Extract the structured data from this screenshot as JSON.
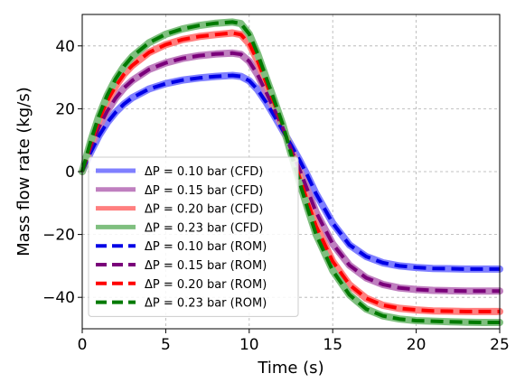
{
  "chart_data": {
    "type": "line",
    "title": "",
    "xlabel": "Time (s)",
    "ylabel": "Mass flow rate (kg/s)",
    "xlim": [
      0,
      25
    ],
    "ylim": [
      -50,
      50
    ],
    "xticks": [
      0,
      5,
      10,
      15,
      20,
      25
    ],
    "yticks": [
      -40,
      -20,
      0,
      20,
      40
    ],
    "grid": true,
    "grid_style": "dashed",
    "legend_position": "lower-left",
    "x": [
      0,
      0.5,
      1,
      1.5,
      2,
      2.5,
      3,
      4,
      5,
      6,
      7,
      8,
      9,
      9.5,
      10,
      10.5,
      11,
      11.5,
      12,
      12.5,
      13,
      13.5,
      14,
      15,
      16,
      17,
      18,
      19,
      20,
      21,
      22,
      23,
      24,
      25
    ],
    "series": [
      {
        "name": "ΔP = 0.10 bar (CFD)",
        "color": "#7f7fff",
        "style": "solid",
        "values": [
          0,
          6.1,
          11.4,
          15.6,
          18.9,
          21.5,
          23.5,
          26.3,
          28.0,
          29.1,
          29.8,
          30.3,
          30.6,
          30.3,
          28.9,
          26.1,
          22.2,
          17.8,
          13.2,
          8.5,
          3.8,
          -1.4,
          -7.0,
          -16.4,
          -23.3,
          -27.0,
          -29.0,
          -30.0,
          -30.5,
          -30.8,
          -30.9,
          -31.0,
          -31.0,
          -31.0
        ]
      },
      {
        "name": "ΔP = 0.15 bar (CFD)",
        "color": "#bf7fbf",
        "style": "solid",
        "values": [
          0,
          7.5,
          14.1,
          19.3,
          23.4,
          26.6,
          29.0,
          32.5,
          34.6,
          36.0,
          36.9,
          37.4,
          37.7,
          37.3,
          35.1,
          30.9,
          25.4,
          19.8,
          14.0,
          7.2,
          0.9,
          -6.0,
          -12.9,
          -23.0,
          -29.8,
          -33.8,
          -35.9,
          -37.0,
          -37.5,
          -37.8,
          -37.9,
          -38.0,
          -38.0,
          -38.0
        ]
      },
      {
        "name": "ΔP = 0.20 bar (CFD)",
        "color": "#ff7f7f",
        "style": "solid",
        "values": [
          0,
          8.8,
          16.4,
          22.5,
          27.2,
          31.0,
          33.8,
          37.9,
          40.4,
          42.0,
          43.0,
          43.6,
          44.1,
          43.6,
          40.7,
          35.3,
          28.5,
          21.8,
          14.8,
          6.3,
          -1.6,
          -9.7,
          -17.3,
          -28.6,
          -36.0,
          -40.3,
          -42.5,
          -43.5,
          -44.0,
          -44.3,
          -44.4,
          -44.5,
          -44.5,
          -44.5
        ]
      },
      {
        "name": "ΔP = 0.23 bar (CFD)",
        "color": "#7fbf7f",
        "style": "solid",
        "values": [
          0,
          9.5,
          17.8,
          24.3,
          29.5,
          33.5,
          36.6,
          41.0,
          43.7,
          45.4,
          46.5,
          47.2,
          47.6,
          47.1,
          43.8,
          37.6,
          30.1,
          22.7,
          15.1,
          5.8,
          -3.1,
          -11.8,
          -19.9,
          -31.5,
          -39.2,
          -43.7,
          -45.9,
          -46.9,
          -47.4,
          -47.6,
          -47.8,
          -47.9,
          -48.0,
          -48.0
        ]
      },
      {
        "name": "ΔP = 0.10 bar (ROM)",
        "color": "#0000e6",
        "style": "dashed",
        "values": [
          0,
          6.1,
          11.4,
          15.6,
          18.9,
          21.5,
          23.5,
          26.3,
          28.0,
          29.1,
          29.8,
          30.3,
          30.6,
          30.3,
          28.9,
          26.1,
          22.2,
          17.8,
          13.2,
          8.5,
          3.8,
          -1.4,
          -7.0,
          -16.4,
          -23.3,
          -27.0,
          -29.0,
          -30.0,
          -30.5,
          -30.8,
          -30.9,
          -31.0,
          -31.0,
          -31.0
        ]
      },
      {
        "name": "ΔP = 0.15 bar (ROM)",
        "color": "#7a007a",
        "style": "dashed",
        "values": [
          0,
          7.5,
          14.1,
          19.3,
          23.4,
          26.6,
          29.0,
          32.5,
          34.6,
          36.0,
          36.9,
          37.4,
          37.7,
          37.3,
          35.1,
          30.9,
          25.4,
          19.8,
          14.0,
          7.2,
          0.9,
          -6.0,
          -12.9,
          -23.0,
          -29.8,
          -33.8,
          -35.9,
          -37.0,
          -37.5,
          -37.8,
          -37.9,
          -38.0,
          -38.0,
          -38.0
        ]
      },
      {
        "name": "ΔP = 0.20 bar (ROM)",
        "color": "#ff0000",
        "style": "dashed",
        "values": [
          0,
          8.8,
          16.4,
          22.5,
          27.2,
          31.0,
          33.8,
          37.9,
          40.4,
          42.0,
          43.0,
          43.6,
          44.1,
          43.6,
          40.7,
          35.3,
          28.5,
          21.8,
          14.8,
          6.3,
          -1.6,
          -9.7,
          -17.3,
          -28.6,
          -36.0,
          -40.3,
          -42.5,
          -43.5,
          -44.0,
          -44.3,
          -44.4,
          -44.5,
          -44.5,
          -44.5
        ]
      },
      {
        "name": "ΔP = 0.23 bar (ROM)",
        "color": "#007a00",
        "style": "dashed",
        "values": [
          0,
          9.5,
          17.8,
          24.3,
          29.5,
          33.5,
          36.6,
          41.0,
          43.7,
          45.4,
          46.5,
          47.2,
          47.6,
          47.1,
          43.8,
          37.6,
          30.1,
          22.7,
          15.1,
          5.8,
          -3.1,
          -11.8,
          -19.9,
          -31.5,
          -39.2,
          -43.7,
          -45.9,
          -46.9,
          -47.4,
          -47.6,
          -47.8,
          -47.9,
          -48.0,
          -48.0
        ]
      }
    ]
  }
}
